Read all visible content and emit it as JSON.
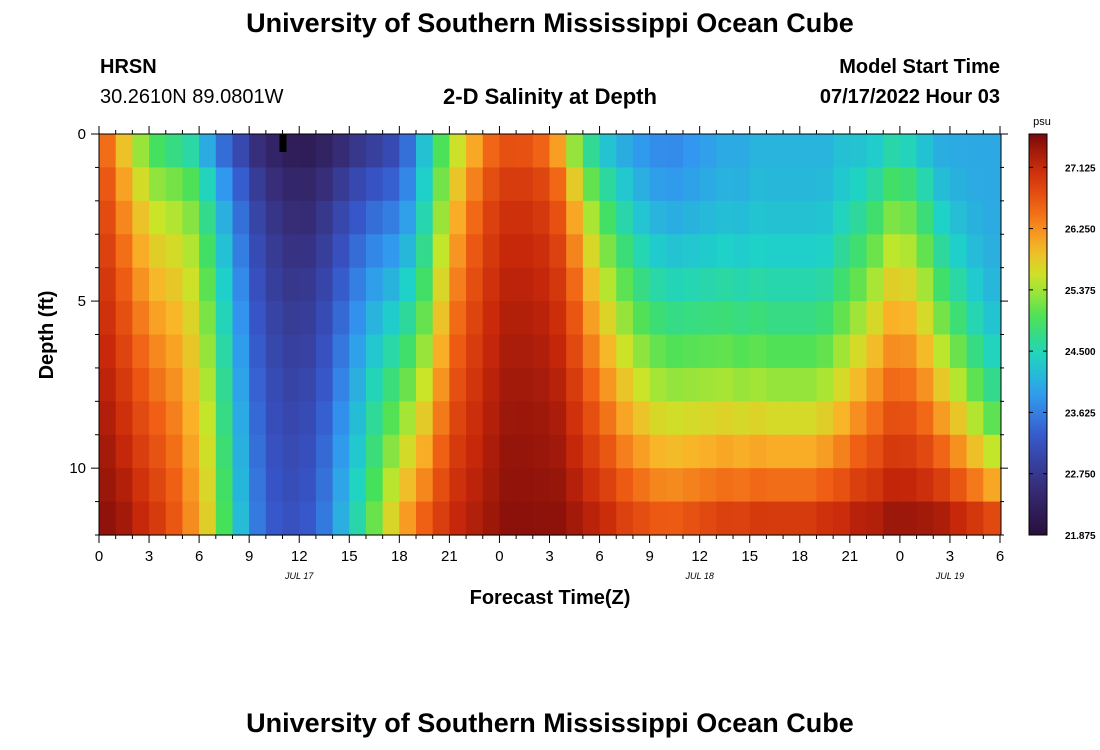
{
  "page": {
    "title": "University of Southern Mississippi Ocean Cube",
    "footer_title": "University of Southern Mississippi Ocean Cube"
  },
  "header": {
    "station": "HRSN",
    "coordinates": "30.2610N  89.0801W",
    "chart_title": "2-D Salinity at Depth",
    "model_start_label": "Model Start Time",
    "model_start_value": "07/17/2022 Hour 03"
  },
  "chart_data": {
    "type": "heatmap",
    "title": "2-D Salinity at Depth",
    "xlabel": "Forecast Time(Z)",
    "ylabel": "Depth (ft)",
    "xlim": [
      0,
      54
    ],
    "ylim": [
      0,
      12
    ],
    "y_inverted": true,
    "x_ticks": [
      0,
      3,
      6,
      9,
      12,
      15,
      18,
      21,
      24,
      27,
      30,
      33,
      36,
      39,
      42,
      45,
      48,
      51,
      54
    ],
    "x_tick_labels": [
      "0",
      "3",
      "6",
      "9",
      "12",
      "15",
      "18",
      "21",
      "0",
      "3",
      "6",
      "9",
      "12",
      "15",
      "18",
      "21",
      "0",
      "3",
      "6"
    ],
    "y_ticks": [
      0,
      5,
      10
    ],
    "y_tick_labels": [
      "0",
      "5",
      "10"
    ],
    "date_labels": [
      {
        "text": "JUL 17",
        "x": 12
      },
      {
        "text": "JUL 18",
        "x": 36
      },
      {
        "text": "JUL 19",
        "x": 51
      }
    ],
    "current_time_marker_x": 11,
    "colorbar": {
      "unit": "psu",
      "min": 21.875,
      "max": 27.6,
      "tick_values": [
        27.125,
        26.25,
        25.375,
        24.5,
        23.625,
        22.75,
        21.875
      ],
      "tick_labels": [
        "27.125",
        "26.250",
        "25.375",
        "24.500",
        "23.625",
        "22.750",
        "21.875"
      ]
    },
    "time_step_hours": 1,
    "depth_levels_ft": [
      0.5,
      1.5,
      2.5,
      3.5,
      4.5,
      5.5,
      6.5,
      7.5,
      8.5,
      9.5,
      10.5,
      11.5
    ],
    "surface_salinity_psu": [
      26.3,
      25.6,
      25.0,
      24.5,
      24.0,
      23.5,
      22.9,
      22.5,
      22.3,
      22.1,
      22.0,
      21.9,
      21.9,
      22.0,
      22.2,
      22.4,
      22.6,
      22.9,
      23.4,
      24.2,
      24.9,
      25.3,
      25.6,
      25.8,
      25.7,
      25.4,
      25.0,
      24.6,
      24.3,
      24.2,
      24.0,
      23.9,
      23.8,
      23.7,
      23.7,
      23.8,
      23.9,
      24.0,
      24.0,
      24.1,
      24.1,
      24.1,
      24.1,
      24.1,
      24.2,
      24.2,
      24.2,
      24.3,
      24.2,
      24.1,
      24.0,
      24.0,
      24.0,
      24.0
    ],
    "bottom_salinity_psu": [
      27.5,
      27.4,
      27.2,
      27.0,
      26.7,
      26.3,
      25.8,
      25.0,
      24.2,
      23.6,
      23.3,
      23.2,
      23.3,
      23.6,
      24.1,
      24.6,
      25.2,
      25.8,
      26.3,
      26.7,
      27.0,
      27.2,
      27.3,
      27.4,
      27.5,
      27.5,
      27.5,
      27.5,
      27.4,
      27.3,
      27.2,
      27.0,
      26.9,
      26.8,
      26.8,
      26.9,
      27.0,
      27.1,
      27.1,
      27.2,
      27.2,
      27.2,
      27.2,
      27.3,
      27.3,
      27.4,
      27.4,
      27.5,
      27.5,
      27.5,
      27.5,
      27.4,
      27.3,
      27.2
    ],
    "stratification_exponent": [
      0.6,
      0.6,
      0.6,
      0.55,
      0.4,
      0.3,
      0.3,
      0.3,
      0.3,
      0.35,
      0.4,
      0.45,
      0.5,
      0.5,
      0.55,
      0.6,
      0.7,
      0.9,
      1.1,
      1.3,
      1.0,
      0.6,
      0.4,
      0.25,
      0.18,
      0.15,
      0.15,
      0.2,
      0.35,
      0.6,
      0.8,
      1.0,
      1.2,
      1.3,
      1.4,
      1.5,
      1.6,
      1.7,
      1.8,
      1.9,
      2.0,
      2.0,
      2.0,
      1.9,
      1.6,
      1.3,
      1.0,
      0.8,
      0.8,
      1.0,
      1.4,
      1.8,
      2.4,
      3.2
    ]
  }
}
